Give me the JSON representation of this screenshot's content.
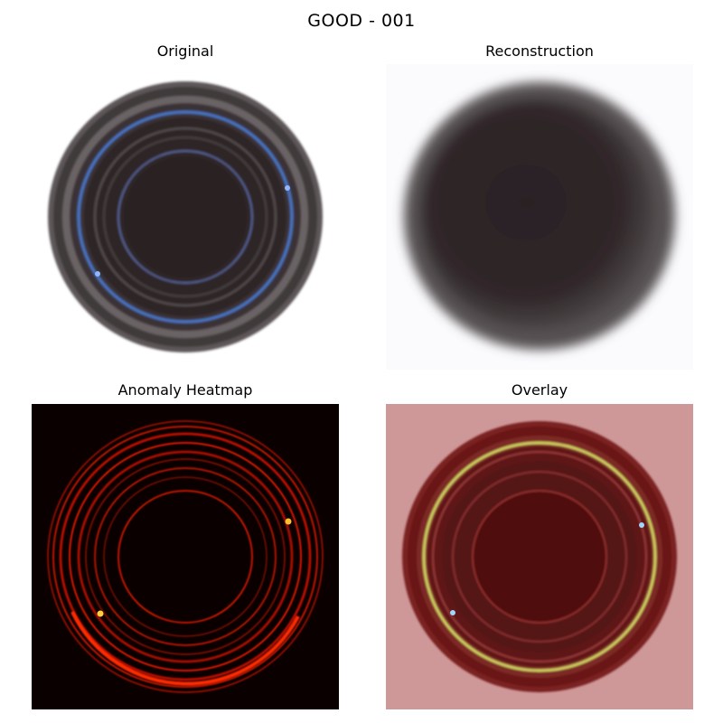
{
  "figure": {
    "title": "GOOD - 001"
  },
  "panels": {
    "original": {
      "title": "Original"
    },
    "reconstruction": {
      "title": "Reconstruction"
    },
    "heatmap": {
      "title": "Anomaly Heatmap"
    },
    "overlay": {
      "title": "Overlay"
    }
  },
  "colors": {
    "background_white": "#ffffff",
    "part_dark": "#2a2224",
    "rim_gray": "#5b5556",
    "ring_blue": "#4a78c8",
    "heat_black": "#0a0000",
    "heat_red": "#e01000",
    "heat_yellow": "#ffd040",
    "overlay_pink": "#cf9898",
    "overlay_dark_red": "#5a1010",
    "overlay_yellow": "#cfcf60"
  }
}
